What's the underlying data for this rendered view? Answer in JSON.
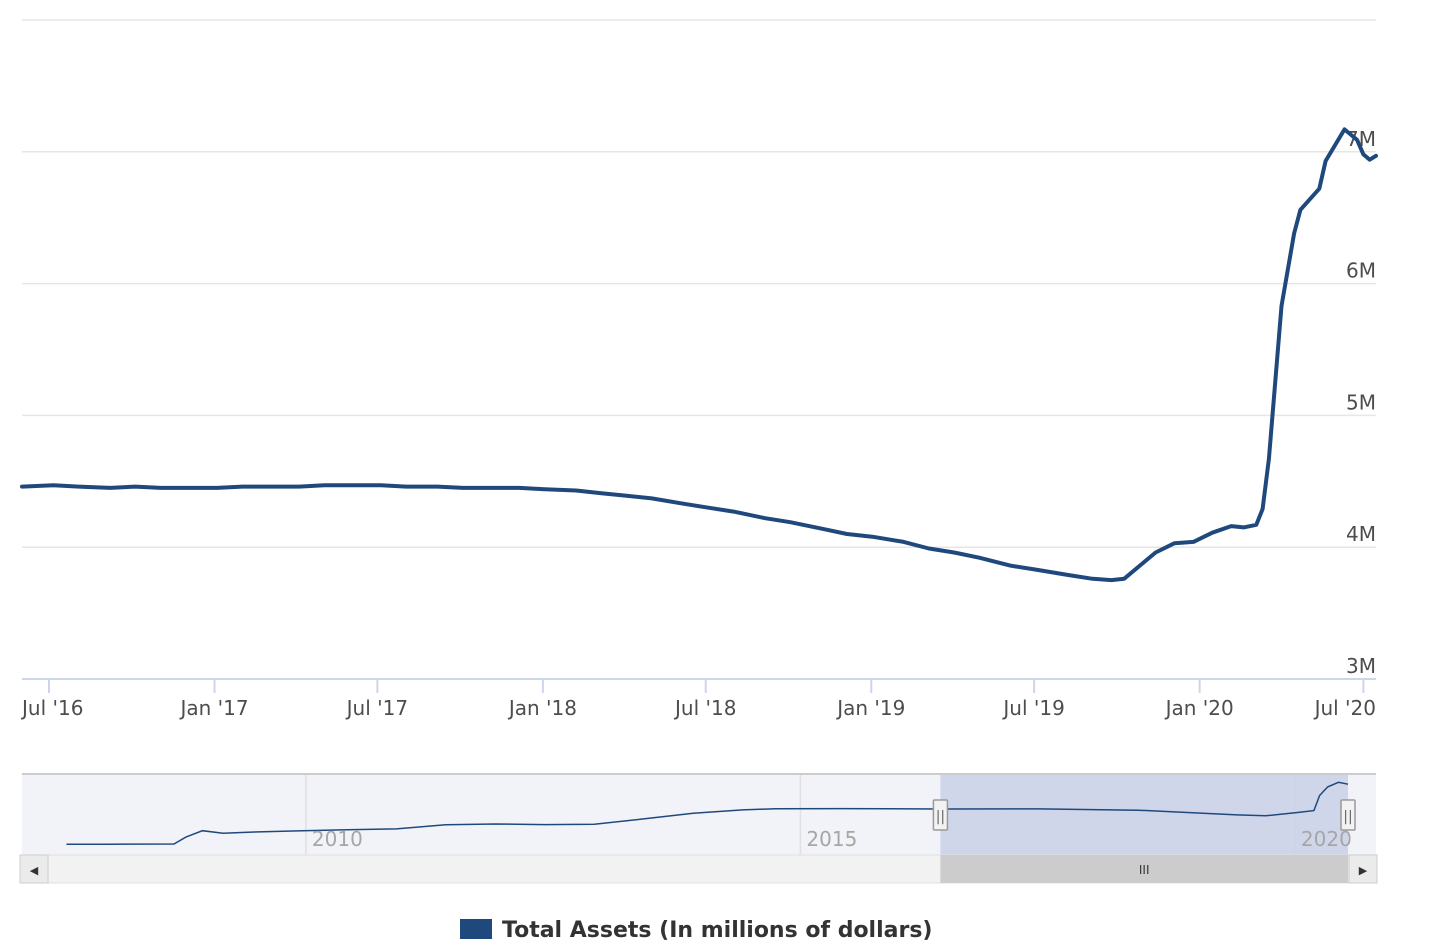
{
  "chart_data": {
    "type": "line",
    "series": [
      {
        "name": "Total Assets (In millions of dollars)",
        "color": "#1f497d",
        "points": [
          [
            "2016-06-01",
            4.46
          ],
          [
            "2016-07-06",
            4.47
          ],
          [
            "2016-08-03",
            4.46
          ],
          [
            "2016-09-07",
            4.45
          ],
          [
            "2016-10-05",
            4.46
          ],
          [
            "2016-11-02",
            4.45
          ],
          [
            "2016-12-07",
            4.45
          ],
          [
            "2017-01-04",
            4.45
          ],
          [
            "2017-02-01",
            4.46
          ],
          [
            "2017-03-01",
            4.46
          ],
          [
            "2017-04-05",
            4.46
          ],
          [
            "2017-05-03",
            4.47
          ],
          [
            "2017-06-07",
            4.47
          ],
          [
            "2017-07-05",
            4.47
          ],
          [
            "2017-08-02",
            4.46
          ],
          [
            "2017-09-06",
            4.46
          ],
          [
            "2017-10-04",
            4.45
          ],
          [
            "2017-11-01",
            4.45
          ],
          [
            "2017-12-06",
            4.45
          ],
          [
            "2018-01-03",
            4.44
          ],
          [
            "2018-02-07",
            4.43
          ],
          [
            "2018-03-07",
            4.41
          ],
          [
            "2018-04-04",
            4.39
          ],
          [
            "2018-05-02",
            4.37
          ],
          [
            "2018-06-06",
            4.33
          ],
          [
            "2018-07-04",
            4.3
          ],
          [
            "2018-08-01",
            4.27
          ],
          [
            "2018-09-05",
            4.22
          ],
          [
            "2018-10-03",
            4.19
          ],
          [
            "2018-11-07",
            4.14
          ],
          [
            "2018-12-05",
            4.1
          ],
          [
            "2019-01-02",
            4.08
          ],
          [
            "2019-02-06",
            4.04
          ],
          [
            "2019-03-06",
            3.99
          ],
          [
            "2019-04-03",
            3.96
          ],
          [
            "2019-05-01",
            3.92
          ],
          [
            "2019-06-05",
            3.86
          ],
          [
            "2019-07-03",
            3.83
          ],
          [
            "2019-08-07",
            3.79
          ],
          [
            "2019-09-04",
            3.76
          ],
          [
            "2019-09-25",
            3.75
          ],
          [
            "2019-10-09",
            3.76
          ],
          [
            "2019-10-30",
            3.88
          ],
          [
            "2019-11-13",
            3.96
          ],
          [
            "2019-12-04",
            4.03
          ],
          [
            "2019-12-25",
            4.04
          ],
          [
            "2020-01-15",
            4.11
          ],
          [
            "2020-02-05",
            4.16
          ],
          [
            "2020-02-19",
            4.15
          ],
          [
            "2020-03-04",
            4.17
          ],
          [
            "2020-03-11",
            4.29
          ],
          [
            "2020-03-18",
            4.67
          ],
          [
            "2020-03-25",
            5.25
          ],
          [
            "2020-04-01",
            5.83
          ],
          [
            "2020-04-15",
            6.38
          ],
          [
            "2020-04-22",
            6.56
          ],
          [
            "2020-05-13",
            6.72
          ],
          [
            "2020-05-20",
            6.93
          ],
          [
            "2020-06-03",
            7.09
          ],
          [
            "2020-06-10",
            7.17
          ],
          [
            "2020-06-24",
            7.09
          ],
          [
            "2020-07-01",
            6.98
          ],
          [
            "2020-07-08",
            6.94
          ],
          [
            "2020-07-15",
            6.97
          ]
        ]
      }
    ],
    "y_axis": {
      "min": 3,
      "max": 8,
      "ticks": [
        3,
        4,
        5,
        6,
        7
      ],
      "tick_labels": [
        "3M",
        "4M",
        "5M",
        "6M",
        "7M"
      ],
      "unit": "million millions of dollars"
    },
    "x_axis": {
      "min": "2016-06-01",
      "max": "2020-07-15",
      "ticks": [
        "2016-07-01",
        "2017-01-01",
        "2017-07-01",
        "2018-01-01",
        "2018-07-01",
        "2019-01-01",
        "2019-07-01",
        "2020-01-01",
        "2020-07-01"
      ],
      "tick_labels": [
        "Jul '16",
        "Jan '17",
        "Jul '17",
        "Jan '18",
        "Jul '18",
        "Jan '19",
        "Jul '19",
        "Jan '20",
        "Jul '20"
      ]
    },
    "grid": true,
    "legend": {
      "position": "bottom-center",
      "label": "Total Assets (In millions of dollars)"
    },
    "navigator": {
      "x_min": "2007-06-01",
      "x_max": "2020-07-15",
      "y_min": 0.8,
      "y_max": 7.4,
      "labels": [
        "2010",
        "2015",
        "2020"
      ],
      "label_dates": [
        "2010-01-01",
        "2015-01-01",
        "2020-01-01"
      ],
      "selected_range": [
        "2016-06-01",
        "2020-07-15"
      ],
      "series": [
        [
          "2007-08-01",
          0.87
        ],
        [
          "2008-01-01",
          0.88
        ],
        [
          "2008-09-01",
          0.9
        ],
        [
          "2008-10-15",
          1.6
        ],
        [
          "2008-12-15",
          2.25
        ],
        [
          "2009-03-01",
          2.0
        ],
        [
          "2009-06-01",
          2.1
        ],
        [
          "2009-12-01",
          2.23
        ],
        [
          "2010-06-01",
          2.35
        ],
        [
          "2010-12-01",
          2.43
        ],
        [
          "2011-06-01",
          2.86
        ],
        [
          "2011-12-01",
          2.93
        ],
        [
          "2012-06-01",
          2.87
        ],
        [
          "2012-12-01",
          2.9
        ],
        [
          "2013-06-01",
          3.45
        ],
        [
          "2013-12-01",
          4.03
        ],
        [
          "2014-06-01",
          4.36
        ],
        [
          "2014-10-01",
          4.49
        ],
        [
          "2015-06-01",
          4.5
        ],
        [
          "2016-06-01",
          4.46
        ],
        [
          "2017-06-01",
          4.47
        ],
        [
          "2018-06-01",
          4.33
        ],
        [
          "2019-06-01",
          3.86
        ],
        [
          "2019-09-15",
          3.76
        ],
        [
          "2020-01-15",
          4.11
        ],
        [
          "2020-03-11",
          4.29
        ],
        [
          "2020-04-01",
          5.83
        ],
        [
          "2020-05-01",
          6.7
        ],
        [
          "2020-06-10",
          7.17
        ],
        [
          "2020-07-15",
          6.97
        ]
      ]
    },
    "colors": {
      "line": "#1f497d",
      "legend_swatch": "#1f497d",
      "navigator_selection": "#ccd3e8",
      "navigator_handle": "#f2f2f2",
      "scrollbar_track": "#f2f2f2",
      "scrollbar_thumb": "#cccccc"
    }
  },
  "scrollbar": {
    "left_arrow": "◀",
    "right_arrow": "▶",
    "grip": "III",
    "handle_grip": "||"
  }
}
